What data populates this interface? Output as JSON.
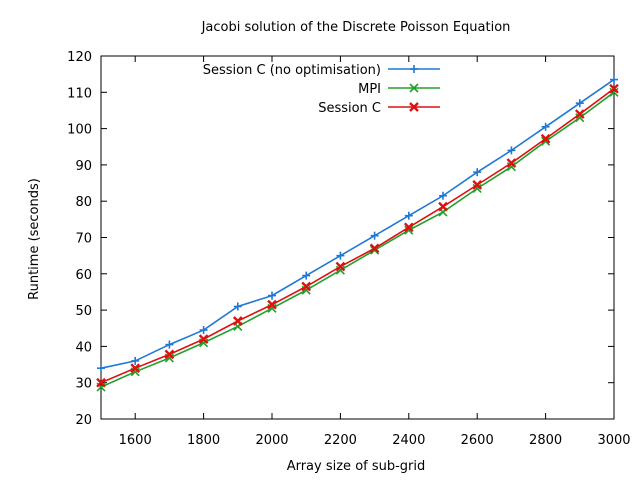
{
  "chart_data": {
    "type": "line",
    "title": "Jacobi solution of the Discrete Poisson Equation",
    "xlabel": "Array size of sub-grid",
    "ylabel": "Runtime (seconds)",
    "xlim": [
      1500,
      3000
    ],
    "ylim": [
      20,
      120
    ],
    "xticks": [
      "1600",
      "1800",
      "2000",
      "2200",
      "2400",
      "2600",
      "2800",
      "3000"
    ],
    "yticks": [
      "20",
      "30",
      "40",
      "50",
      "60",
      "70",
      "80",
      "90",
      "100",
      "110",
      "120"
    ],
    "grid": false,
    "legend_position": "top-left",
    "x": [
      1500,
      1600,
      1700,
      1800,
      1900,
      2000,
      2100,
      2200,
      2300,
      2400,
      2500,
      2600,
      2700,
      2800,
      2900,
      3000
    ],
    "series": [
      {
        "name": "Session C (no optimisation)",
        "color": "#1f78d6",
        "marker": "plus",
        "values": [
          34,
          36,
          40.5,
          44.5,
          51,
          54,
          59.5,
          65,
          70.5,
          76,
          81.5,
          88,
          94,
          100.5,
          107,
          113.5
        ]
      },
      {
        "name": "MPI",
        "color": "#22a02a",
        "marker": "cross",
        "values": [
          28.8,
          33,
          36.8,
          41,
          45.5,
          50.5,
          55.5,
          61,
          66.5,
          72,
          77,
          83.5,
          89.5,
          96.5,
          103,
          110
        ]
      },
      {
        "name": "Session C",
        "color": "#dd1111",
        "marker": "x",
        "values": [
          30,
          34,
          37.8,
          42,
          47,
          51.5,
          56.5,
          62,
          67,
          72.8,
          78.5,
          84.5,
          90.5,
          97.2,
          104,
          111
        ]
      }
    ]
  }
}
